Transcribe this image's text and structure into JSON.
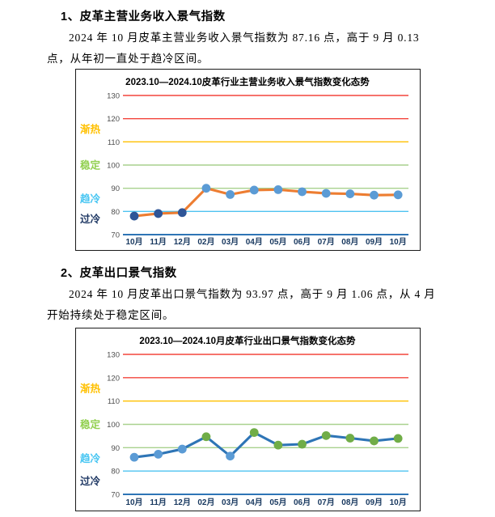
{
  "sections": [
    {
      "heading": "1、皮革主营业务收入景气指数",
      "para_line1": "2024 年 10 月皮革主营业务收入景气指数为 87.16 点，高于 9 月 0.13",
      "para_line2": "点，从年初一直处于趋冷区间。"
    },
    {
      "heading": "2、皮革出口景气指数",
      "para_line1": "2024 年 10 月皮革出口景气指数为 93.97 点，高于 9 月 1.06 点，从 4 月",
      "para_line2": "开始持续处于稳定区间。"
    }
  ],
  "chart_data": [
    {
      "type": "line",
      "title": "2023.10—2024.10皮革行业主营业务收入景气指数变化态势",
      "categories": [
        "10月",
        "11月",
        "12月",
        "02月",
        "03月",
        "04月",
        "05月",
        "06月",
        "07月",
        "08月",
        "09月",
        "10月"
      ],
      "series": [
        {
          "name": "皮革主营业务收入景气指数",
          "values": [
            78.0,
            79.1,
            79.5,
            90.0,
            87.3,
            89.2,
            89.4,
            88.5,
            87.8,
            87.6,
            87.03,
            87.16
          ]
        }
      ],
      "ylim": [
        70,
        130
      ],
      "yticks": [
        70,
        80,
        90,
        100,
        110,
        120,
        130
      ],
      "grid": true,
      "legend_position": "none",
      "line_color": "#ED7D31",
      "marker_rule": {
        "threshold": 80,
        "below_color": "#2F5597",
        "at_or_above_color": "#5B9BD5"
      },
      "gridlines": [
        {
          "value": 130,
          "color": "#F3453C"
        },
        {
          "value": 120,
          "color": "#F3453C"
        },
        {
          "value": 110,
          "color": "#FFC000"
        },
        {
          "value": 100,
          "color": "#A9D18E"
        },
        {
          "value": 90,
          "color": "#A9D18E"
        },
        {
          "value": 80,
          "color": "#4FC3F0"
        },
        {
          "value": 70,
          "color": "#2E75B6"
        }
      ],
      "zone_labels": [
        {
          "text": "渐热",
          "value": 115.5,
          "color": "#FFC000"
        },
        {
          "text": "稳定",
          "value": 100,
          "color": "#92D050"
        },
        {
          "text": "趋冷",
          "value": 85.5,
          "color": "#45C5F2"
        },
        {
          "text": "过冷",
          "value": 76.8,
          "color": "#1F3864"
        }
      ]
    },
    {
      "type": "line",
      "title": "2023.10—2024.10月皮革行业出口景气指数变化态势",
      "categories": [
        "10月",
        "11月",
        "12月",
        "02月",
        "03月",
        "04月",
        "05月",
        "06月",
        "07月",
        "08月",
        "09月",
        "10月"
      ],
      "series": [
        {
          "name": "皮革出口景气指数",
          "values": [
            85.9,
            87.2,
            89.4,
            94.7,
            86.4,
            96.5,
            91.1,
            91.5,
            95.2,
            94.1,
            92.91,
            93.97
          ]
        }
      ],
      "ylim": [
        70,
        130
      ],
      "yticks": [
        70,
        80,
        90,
        100,
        110,
        120,
        130
      ],
      "grid": true,
      "legend_position": "none",
      "line_color": "#2E75B6",
      "marker_rule": {
        "threshold": 90,
        "below_color": "#5B9BD5",
        "at_or_above_color": "#70AD47"
      },
      "gridlines": [
        {
          "value": 130,
          "color": "#F3453C"
        },
        {
          "value": 120,
          "color": "#F3453C"
        },
        {
          "value": 110,
          "color": "#FFC000"
        },
        {
          "value": 100,
          "color": "#A9D18E"
        },
        {
          "value": 90,
          "color": "#A9D18E"
        },
        {
          "value": 80,
          "color": "#4FC3F0"
        },
        {
          "value": 70,
          "color": "#2E75B6"
        }
      ],
      "zone_labels": [
        {
          "text": "渐热",
          "value": 115.5,
          "color": "#FFC000"
        },
        {
          "text": "稳定",
          "value": 100,
          "color": "#92D050"
        },
        {
          "text": "趋冷",
          "value": 85.5,
          "color": "#45C5F2"
        },
        {
          "text": "过冷",
          "value": 75.8,
          "color": "#1F3864"
        }
      ]
    }
  ]
}
